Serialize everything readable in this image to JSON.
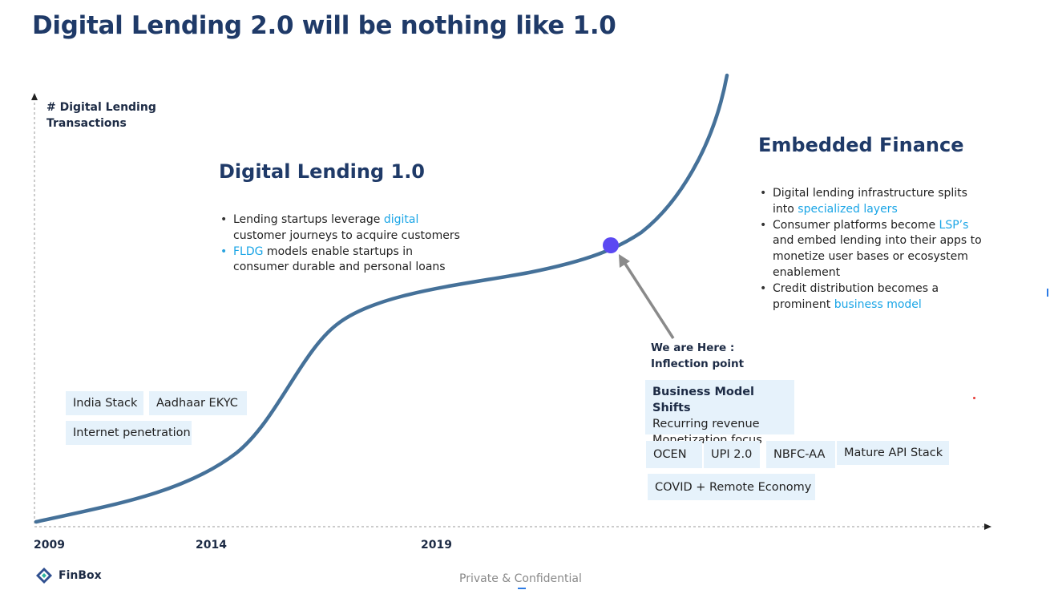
{
  "title": "Digital Lending 2.0 will be nothing like 1.0",
  "axis": {
    "ylabel": "# Digital Lending Transactions",
    "x_ticks": [
      "2009",
      "2014",
      "2019"
    ]
  },
  "phase1": {
    "title": "Digital Lending 1.0",
    "bullets": [
      {
        "pre": "Lending startups leverage ",
        "hl": "digital",
        "post": " customer journeys to acquire customers"
      },
      {
        "pre": "",
        "hl": "FLDG",
        "post": " models enable startups in consumer durable and personal loans"
      }
    ]
  },
  "phase2": {
    "title": "Embedded Finance",
    "bullets": [
      {
        "pre": "Digital lending infrastructure splits into ",
        "hl": "specialized layers",
        "post": ""
      },
      {
        "pre": "Consumer platforms become ",
        "hl": "LSP’s",
        "post": " and embed lending into their apps to monetize user bases or ecosystem enablement"
      },
      {
        "pre": "Credit distribution becomes a prominent ",
        "hl": "business model",
        "post": ""
      }
    ]
  },
  "tags_phase1": [
    "India Stack",
    "Aadhaar EKYC",
    "Internet penetration"
  ],
  "marker": {
    "line1": "We are Here :",
    "line2": "Inflection point"
  },
  "business_model_shifts": {
    "title": "Business Model Shifts",
    "items": [
      "Recurring revenue",
      "Monetization focus"
    ]
  },
  "tags_phase2": [
    "OCEN",
    "UPI 2.0",
    "NBFC-AA",
    "Mature API Stack",
    "COVID + Remote Economy"
  ],
  "colors": {
    "curve": "#457199",
    "marker": "#5b49f2",
    "arrow": "#8a8a8a",
    "title": "#1f3a68",
    "highlight": "#1aa5e6",
    "tag_bg": "#e6f2fb"
  },
  "logo": {
    "name": "FinBox"
  },
  "footer": "Private & Confidential"
}
